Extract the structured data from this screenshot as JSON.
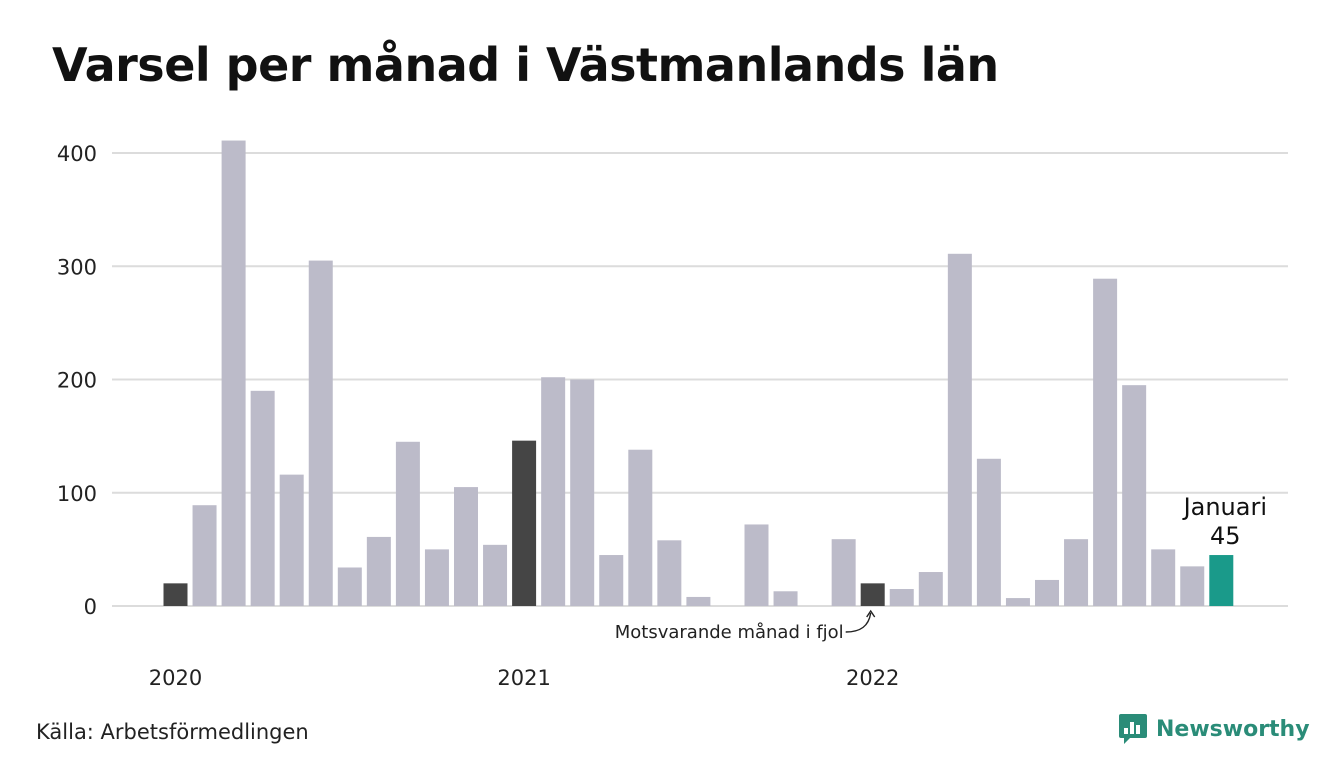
{
  "title": "Varsel per månad i Västmanlands län",
  "source": "Källa: Arbetsförmedlingen",
  "brand": {
    "name": "Newsworthy",
    "icon": "chart-speech-bubble-icon"
  },
  "colors": {
    "bar": "#bcbbc9",
    "highlight_prev": "#454545",
    "current": "#1a9a8a",
    "grid": "#dcdcdc",
    "brand": "#2a8c78"
  },
  "chart_data": {
    "type": "bar",
    "title": "Varsel per månad i Västmanlands län",
    "xlabel": "",
    "ylabel": "",
    "ylim": [
      0,
      410
    ],
    "yticks": [
      0,
      100,
      200,
      300,
      400
    ],
    "x_year_labels": [
      {
        "label": "2020",
        "index": 0
      },
      {
        "label": "2021",
        "index": 12
      },
      {
        "label": "2022",
        "index": 24
      }
    ],
    "values": [
      20,
      89,
      411,
      190,
      116,
      305,
      34,
      61,
      145,
      50,
      105,
      54,
      146,
      202,
      200,
      45,
      138,
      58,
      8,
      0,
      72,
      13,
      0,
      59,
      20,
      15,
      30,
      311,
      130,
      7,
      23,
      59,
      289,
      195,
      50,
      35,
      45
    ],
    "highlight_indices": [
      0,
      12,
      24
    ],
    "current_index": 36,
    "current_label": "Januari",
    "current_value_label": "45",
    "annotation": {
      "text": "Motsvarande månad i fjol",
      "index": 24
    },
    "grid": true
  }
}
